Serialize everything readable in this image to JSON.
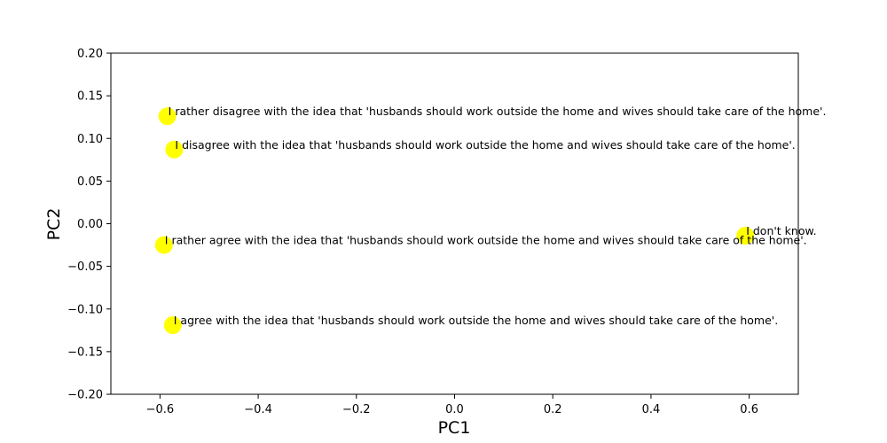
{
  "chart_data": {
    "type": "scatter",
    "title": "",
    "xlabel": "PC1",
    "ylabel": "PC2",
    "xlim": [
      -0.7,
      0.7
    ],
    "ylim": [
      -0.2,
      0.2
    ],
    "x_ticks": [
      -0.6,
      -0.4,
      -0.2,
      0.0,
      0.2,
      0.4,
      0.6
    ],
    "x_tick_labels": [
      "−0.6",
      "−0.4",
      "−0.2",
      "0.0",
      "0.2",
      "0.4",
      "0.6"
    ],
    "y_ticks": [
      -0.2,
      -0.15,
      -0.1,
      -0.05,
      0.0,
      0.05,
      0.1,
      0.15,
      0.2
    ],
    "y_tick_labels": [
      "−0.20",
      "−0.15",
      "−0.10",
      "−0.05",
      "0.00",
      "0.05",
      "0.10",
      "0.15",
      "0.20"
    ],
    "grid": false,
    "marker_color": "#ffff00",
    "points": [
      {
        "x": -0.585,
        "y": 0.126,
        "label": "I rather disagree with the idea that 'husbands should work outside the home and wives should take care of the home'."
      },
      {
        "x": -0.571,
        "y": 0.087,
        "label": "I disagree with the idea that 'husbands should work outside the home and wives should take care of the home'."
      },
      {
        "x": 0.592,
        "y": -0.014,
        "label": "I don't know."
      },
      {
        "x": -0.592,
        "y": -0.025,
        "label": "I rather agree with the idea that 'husbands should work outside the home and wives should take care of the home'."
      },
      {
        "x": -0.574,
        "y": -0.119,
        "label": "I agree with the idea that 'husbands should work outside the home and wives should take care of the home'."
      }
    ]
  }
}
